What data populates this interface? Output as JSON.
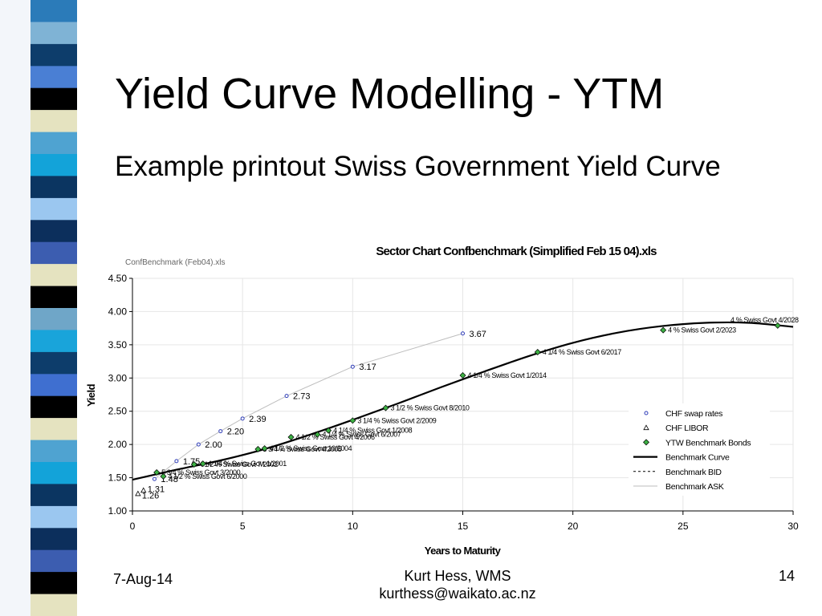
{
  "slide": {
    "title": "Yield Curve Modelling - YTM",
    "subtitle": "Example printout Swiss Government Yield Curve",
    "date": "7-Aug-14",
    "author_line1": "Kurt Hess, WMS",
    "author_line2": "kurthess@waikato.ac.nz",
    "page_number": "14"
  },
  "decoration": {
    "strip_colors": [
      "#2b7bb9",
      "#7fb3d5",
      "#0d3d6b",
      "#4a7fd4",
      "#000000",
      "#e5e3c0",
      "#4fa3d1",
      "#13a3d9",
      "#0b3561",
      "#9bc7f0",
      "#0c2f5c",
      "#3c5db0",
      "#e5e3c0",
      "#000000",
      "#6fa6c8",
      "#19a4da",
      "#0d3d6b",
      "#3f6fd0",
      "#000000",
      "#e5e3c0",
      "#4fa3d1",
      "#13a3d9",
      "#0b3561",
      "#9bc7f0",
      "#0c2f5c",
      "#3c5db0",
      "#000000",
      "#e5e3c0"
    ]
  },
  "chart_data": {
    "type": "scatter",
    "title": "Sector Chart Confbenchmark (Simplified Feb 15 04).xls",
    "file_label": "ConfBenchmark (Feb04).xls",
    "xlabel": "Years to Maturity",
    "ylabel": "Yield",
    "xlim": [
      0,
      30
    ],
    "ylim": [
      1.0,
      4.5
    ],
    "xticks": [
      0,
      5,
      10,
      15,
      20,
      25,
      30
    ],
    "yticks": [
      "1.00",
      "1.50",
      "2.00",
      "2.50",
      "3.00",
      "3.50",
      "4.00",
      "4.50"
    ],
    "grid": true,
    "legend_position": "right",
    "legend": [
      "CHF swap rates",
      "CHF LIBOR",
      "YTW Benchmark Bonds",
      "Benchmark Curve",
      "Benchmark BID",
      "Benchmark ASK"
    ],
    "colors": {
      "swap": "#2f3db8",
      "bond": "#3cb043",
      "curve": "#000000",
      "ask": "#bdbdbd"
    },
    "swap_rates": [
      {
        "x": 1,
        "y": 1.48,
        "label": "1.48"
      },
      {
        "x": 2,
        "y": 1.75,
        "label": "1.75"
      },
      {
        "x": 3,
        "y": 2.0,
        "label": "2.00"
      },
      {
        "x": 4,
        "y": 2.2,
        "label": "2.20"
      },
      {
        "x": 5,
        "y": 2.39,
        "label": "2.39"
      },
      {
        "x": 7,
        "y": 2.73,
        "label": "2.73"
      },
      {
        "x": 10,
        "y": 3.17,
        "label": "3.17"
      },
      {
        "x": 15,
        "y": 3.67,
        "label": "3.67"
      }
    ],
    "libor": [
      {
        "x": 0.25,
        "y": 1.26,
        "label": "1.26"
      },
      {
        "x": 0.5,
        "y": 1.31,
        "label": "1.31"
      }
    ],
    "bonds": [
      {
        "x": 1.1,
        "y": 1.58,
        "label": "5 3/4 % Swiss Govt 3/2000"
      },
      {
        "x": 1.4,
        "y": 1.52,
        "label": "4 1/2 % Swiss Govt 6/2000"
      },
      {
        "x": 2.8,
        "y": 1.7,
        "label": "4 1/2 % Swiss Govt 7/2002"
      },
      {
        "x": 3.2,
        "y": 1.71,
        "label": "4 1/4 % Swiss Govt 1/2001"
      },
      {
        "x": 5.7,
        "y": 1.93,
        "label": "3 3/4 % Swiss Govt 4/2005"
      },
      {
        "x": 6.0,
        "y": 1.94,
        "label": "4 1/2 % Swiss Govt 10/2004"
      },
      {
        "x": 7.2,
        "y": 2.11,
        "label": "4 1/2 % Swiss Govt 4/2006"
      },
      {
        "x": 8.4,
        "y": 2.15,
        "label": "4 1/4 % Swiss Govt 6/2007"
      },
      {
        "x": 8.9,
        "y": 2.21,
        "label": "4 1/4 % Swiss Govt 1/2008"
      },
      {
        "x": 10.0,
        "y": 2.36,
        "label": "3 1/4 % Swiss Govt 2/2009"
      },
      {
        "x": 11.5,
        "y": 2.55,
        "label": "3 1/2 % Swiss Govt 8/2010"
      },
      {
        "x": 15.0,
        "y": 3.04,
        "label": "4 1/4 % Swiss Govt 1/2014"
      },
      {
        "x": 18.4,
        "y": 3.39,
        "label": "4 1/4 % Swiss Govt 6/2017"
      },
      {
        "x": 24.1,
        "y": 3.72,
        "label": "4 % Swiss Govt 2/2023"
      },
      {
        "x": 29.3,
        "y": 3.79,
        "label": "4 % Swiss Govt 4/2028"
      }
    ],
    "benchmark_curve": [
      {
        "x": 0,
        "y": 1.47
      },
      {
        "x": 2,
        "y": 1.62
      },
      {
        "x": 4,
        "y": 1.76
      },
      {
        "x": 6,
        "y": 1.93
      },
      {
        "x": 8,
        "y": 2.14
      },
      {
        "x": 10,
        "y": 2.37
      },
      {
        "x": 12,
        "y": 2.61
      },
      {
        "x": 14,
        "y": 2.86
      },
      {
        "x": 16,
        "y": 3.1
      },
      {
        "x": 18,
        "y": 3.33
      },
      {
        "x": 20,
        "y": 3.53
      },
      {
        "x": 22,
        "y": 3.68
      },
      {
        "x": 24,
        "y": 3.78
      },
      {
        "x": 26,
        "y": 3.83
      },
      {
        "x": 28,
        "y": 3.83
      },
      {
        "x": 30,
        "y": 3.77
      }
    ]
  }
}
